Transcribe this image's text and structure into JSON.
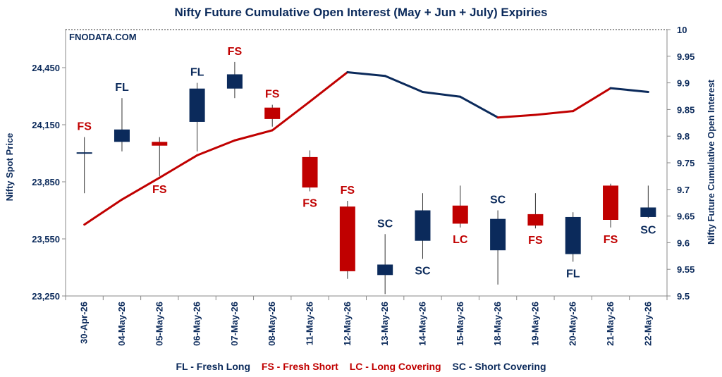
{
  "watermark": "FNODATA.COM",
  "chart_data": {
    "type": "candlestick+line",
    "title": "Nifty Future Cumulative Open Interest (May + Jun + July) Expiries",
    "ylabel_left": "Nifty Spot Price",
    "ylabel_right": "Nifty Future Cumulative Open Interest",
    "ylim_left": [
      23250,
      24650
    ],
    "ylim_right": [
      9.5,
      10
    ],
    "yticks_left": [
      "23,250",
      "23,550",
      "23,850",
      "24,150",
      "24,450"
    ],
    "yticks_right": [
      "9.5",
      "9.55",
      "9.6",
      "9.65",
      "9.7",
      "9.75",
      "9.8",
      "9.85",
      "9.9",
      "9.95",
      "10"
    ],
    "categories": [
      "30-Apr-26",
      "04-May-26",
      "05-May-26",
      "06-May-26",
      "07-May-26",
      "08-May-26",
      "11-May-26",
      "12-May-26",
      "13-May-26",
      "14-May-26",
      "15-May-26",
      "18-May-26",
      "19-May-26",
      "20-May-26",
      "21-May-26",
      "22-May-26"
    ],
    "candles": [
      {
        "open": 24000,
        "high": 24085,
        "low": 23790,
        "close": 24005
      },
      {
        "open": 24060,
        "high": 24290,
        "low": 24010,
        "close": 24125
      },
      {
        "open": 24060,
        "high": 24085,
        "low": 23880,
        "close": 24040
      },
      {
        "open": 24165,
        "high": 24370,
        "low": 24010,
        "close": 24340
      },
      {
        "open": 24340,
        "high": 24480,
        "low": 24290,
        "close": 24415
      },
      {
        "open": 24240,
        "high": 24255,
        "low": 24140,
        "close": 24180
      },
      {
        "open": 23980,
        "high": 24015,
        "low": 23800,
        "close": 23820
      },
      {
        "open": 23720,
        "high": 23750,
        "low": 23340,
        "close": 23380
      },
      {
        "open": 23360,
        "high": 23575,
        "low": 23260,
        "close": 23415
      },
      {
        "open": 23540,
        "high": 23790,
        "low": 23445,
        "close": 23700
      },
      {
        "open": 23725,
        "high": 23830,
        "low": 23610,
        "close": 23630
      },
      {
        "open": 23490,
        "high": 23700,
        "low": 23310,
        "close": 23655
      },
      {
        "open": 23680,
        "high": 23790,
        "low": 23605,
        "close": 23620
      },
      {
        "open": 23470,
        "high": 23690,
        "low": 23430,
        "close": 23665
      },
      {
        "open": 23830,
        "high": 23840,
        "low": 23610,
        "close": 23650
      },
      {
        "open": 23665,
        "high": 23830,
        "low": 23660,
        "close": 23715
      }
    ],
    "oi_series": [
      9.634,
      9.681,
      9.722,
      9.764,
      9.792,
      9.811,
      9.865,
      9.92,
      9.913,
      9.883,
      9.874,
      9.835,
      9.84,
      9.847,
      9.89,
      9.883
    ],
    "annotations": [
      "FS",
      "FL",
      "FS",
      "FL",
      "FS",
      "FS",
      "FS",
      "FS",
      "SC",
      "SC",
      "LC",
      "SC",
      "FS",
      "FL",
      "FS",
      "SC"
    ],
    "legend": [
      {
        "code": "FL",
        "text": "FL - Fresh Long",
        "color": "#0b2a5b"
      },
      {
        "code": "FS",
        "text": "FS - Fresh Short",
        "color": "#c00000"
      },
      {
        "code": "LC",
        "text": "LC - Long Covering",
        "color": "#c00000"
      },
      {
        "code": "SC",
        "text": "SC - Short Covering",
        "color": "#0b2a5b"
      }
    ],
    "colors": {
      "bull": "#0b2a5b",
      "bear": "#c00000",
      "wick": "#333333",
      "text_navy": "#0b2a5b"
    }
  }
}
